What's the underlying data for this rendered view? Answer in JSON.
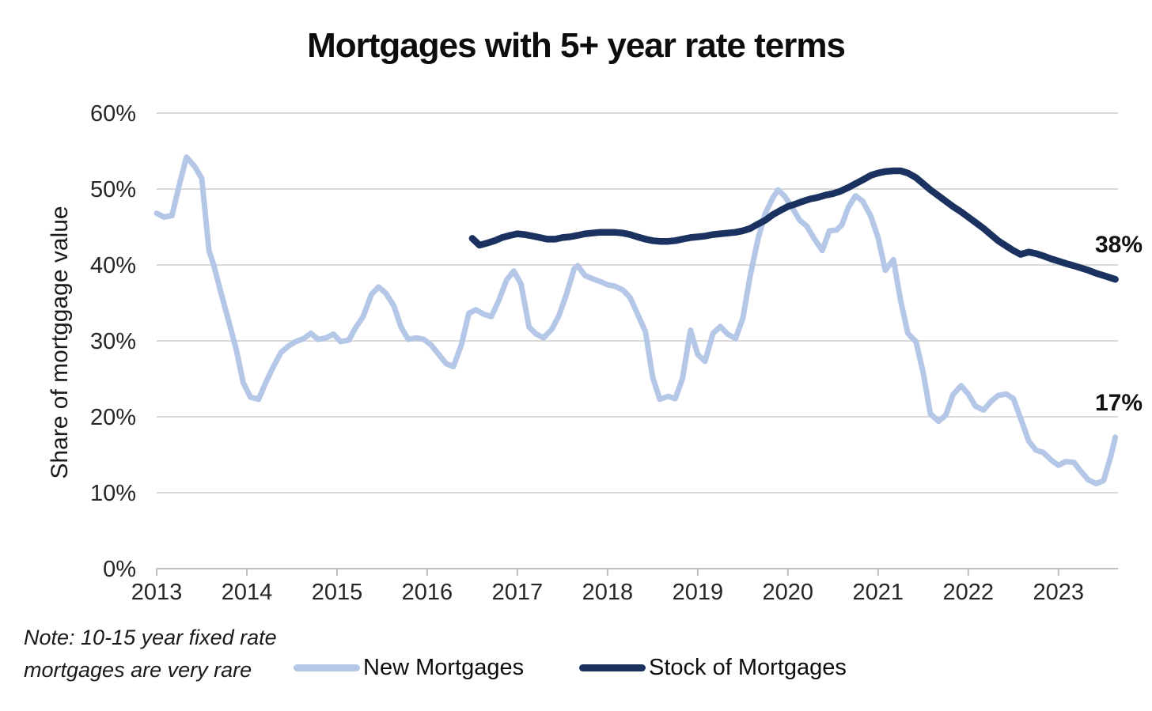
{
  "title": "Mortgages with 5+ year rate terms",
  "y_axis": {
    "title": "Share of mortggage value",
    "tick_labels": [
      "60%",
      "50%",
      "40%",
      "30%",
      "20%",
      "10%",
      "0%"
    ],
    "min": 0,
    "max": 60,
    "step": 10
  },
  "x_axis": {
    "tick_labels": [
      "2013",
      "2014",
      "2015",
      "2016",
      "2017",
      "2018",
      "2019",
      "2020",
      "2021",
      "2022",
      "2023"
    ]
  },
  "note": {
    "line1": "Note: 10-15 year fixed rate",
    "line2": "mortgages are very rare"
  },
  "legend": {
    "items": [
      {
        "label": "New Mortgages",
        "color": "#b4c7e7"
      },
      {
        "label": "Stock of Mortgages",
        "color": "#1b3261"
      }
    ]
  },
  "colors": {
    "new_mortgages": "#b4c7e7",
    "stock_of_mortgages": "#1b3261",
    "gridline": "#d9d9d9",
    "axis": "#bfbfbf",
    "text": "#262626"
  },
  "annotations": [
    {
      "text": "38%",
      "series": "Stock of Mortgages"
    },
    {
      "text": "17%",
      "series": "New Mortgages"
    }
  ],
  "chart_data": {
    "type": "line",
    "title": "Mortgages with 5+ year rate terms",
    "xlabel": "",
    "ylabel": "Share of mortggage value",
    "ylim": [
      0,
      60
    ],
    "x_range": [
      2013,
      2023.66
    ],
    "grid": "horizontal",
    "legend_position": "bottom",
    "series": [
      {
        "name": "New Mortgages",
        "color": "#b4c7e7",
        "width": 7,
        "end_label": "17%",
        "points": [
          [
            2013.0,
            46.8
          ],
          [
            2013.08,
            46.3
          ],
          [
            2013.17,
            46.5
          ],
          [
            2013.25,
            50.5
          ],
          [
            2013.33,
            54.2
          ],
          [
            2013.42,
            53.0
          ],
          [
            2013.5,
            51.4
          ],
          [
            2013.58,
            41.9
          ],
          [
            2013.63,
            40.1
          ],
          [
            2013.71,
            36.5
          ],
          [
            2013.79,
            33.0
          ],
          [
            2013.88,
            29.0
          ],
          [
            2013.96,
            24.5
          ],
          [
            2014.04,
            22.6
          ],
          [
            2014.13,
            22.3
          ],
          [
            2014.21,
            24.5
          ],
          [
            2014.29,
            26.5
          ],
          [
            2014.38,
            28.5
          ],
          [
            2014.46,
            29.3
          ],
          [
            2014.54,
            29.9
          ],
          [
            2014.63,
            30.3
          ],
          [
            2014.71,
            31.0
          ],
          [
            2014.79,
            30.2
          ],
          [
            2014.88,
            30.4
          ],
          [
            2014.96,
            30.9
          ],
          [
            2015.04,
            29.9
          ],
          [
            2015.13,
            30.1
          ],
          [
            2015.21,
            31.8
          ],
          [
            2015.29,
            33.2
          ],
          [
            2015.38,
            36.1
          ],
          [
            2015.46,
            37.1
          ],
          [
            2015.54,
            36.3
          ],
          [
            2015.63,
            34.6
          ],
          [
            2015.71,
            31.8
          ],
          [
            2015.79,
            30.2
          ],
          [
            2015.88,
            30.4
          ],
          [
            2015.96,
            30.2
          ],
          [
            2016.04,
            29.5
          ],
          [
            2016.13,
            28.2
          ],
          [
            2016.21,
            27.0
          ],
          [
            2016.29,
            26.6
          ],
          [
            2016.38,
            29.5
          ],
          [
            2016.46,
            33.6
          ],
          [
            2016.54,
            34.1
          ],
          [
            2016.63,
            33.5
          ],
          [
            2016.71,
            33.2
          ],
          [
            2016.79,
            35.2
          ],
          [
            2016.88,
            38.0
          ],
          [
            2016.96,
            39.2
          ],
          [
            2017.04,
            37.5
          ],
          [
            2017.13,
            31.8
          ],
          [
            2017.21,
            30.9
          ],
          [
            2017.29,
            30.4
          ],
          [
            2017.38,
            31.5
          ],
          [
            2017.46,
            33.3
          ],
          [
            2017.54,
            36.0
          ],
          [
            2017.63,
            39.5
          ],
          [
            2017.67,
            39.9
          ],
          [
            2017.75,
            38.6
          ],
          [
            2017.83,
            38.2
          ],
          [
            2017.92,
            37.8
          ],
          [
            2018.0,
            37.4
          ],
          [
            2018.08,
            37.2
          ],
          [
            2018.17,
            36.7
          ],
          [
            2018.25,
            35.7
          ],
          [
            2018.33,
            33.6
          ],
          [
            2018.42,
            31.2
          ],
          [
            2018.5,
            25.2
          ],
          [
            2018.58,
            22.3
          ],
          [
            2018.67,
            22.7
          ],
          [
            2018.75,
            22.4
          ],
          [
            2018.83,
            25.0
          ],
          [
            2018.92,
            31.4
          ],
          [
            2019.0,
            28.2
          ],
          [
            2019.08,
            27.3
          ],
          [
            2019.17,
            31.0
          ],
          [
            2019.25,
            31.9
          ],
          [
            2019.33,
            30.9
          ],
          [
            2019.42,
            30.3
          ],
          [
            2019.5,
            33.0
          ],
          [
            2019.58,
            38.5
          ],
          [
            2019.67,
            43.5
          ],
          [
            2019.75,
            46.8
          ],
          [
            2019.83,
            48.8
          ],
          [
            2019.89,
            49.9
          ],
          [
            2019.96,
            49.1
          ],
          [
            2020.04,
            47.7
          ],
          [
            2020.13,
            45.9
          ],
          [
            2020.21,
            45.1
          ],
          [
            2020.29,
            43.5
          ],
          [
            2020.38,
            41.9
          ],
          [
            2020.46,
            44.5
          ],
          [
            2020.54,
            44.6
          ],
          [
            2020.6,
            45.3
          ],
          [
            2020.67,
            47.6
          ],
          [
            2020.75,
            49.1
          ],
          [
            2020.83,
            48.4
          ],
          [
            2020.92,
            46.4
          ],
          [
            2021.0,
            43.6
          ],
          [
            2021.08,
            39.3
          ],
          [
            2021.17,
            40.7
          ],
          [
            2021.25,
            35.3
          ],
          [
            2021.33,
            31.0
          ],
          [
            2021.42,
            29.9
          ],
          [
            2021.5,
            25.8
          ],
          [
            2021.58,
            20.4
          ],
          [
            2021.67,
            19.4
          ],
          [
            2021.75,
            20.2
          ],
          [
            2021.83,
            22.9
          ],
          [
            2021.92,
            24.1
          ],
          [
            2022.0,
            23.0
          ],
          [
            2022.08,
            21.4
          ],
          [
            2022.17,
            20.9
          ],
          [
            2022.25,
            22.0
          ],
          [
            2022.33,
            22.8
          ],
          [
            2022.42,
            23.0
          ],
          [
            2022.5,
            22.4
          ],
          [
            2022.58,
            19.8
          ],
          [
            2022.67,
            16.8
          ],
          [
            2022.75,
            15.6
          ],
          [
            2022.83,
            15.3
          ],
          [
            2022.92,
            14.3
          ],
          [
            2023.0,
            13.6
          ],
          [
            2023.08,
            14.1
          ],
          [
            2023.17,
            14.0
          ],
          [
            2023.25,
            12.8
          ],
          [
            2023.33,
            11.7
          ],
          [
            2023.42,
            11.2
          ],
          [
            2023.5,
            11.6
          ],
          [
            2023.58,
            14.8
          ],
          [
            2023.63,
            17.3
          ]
        ]
      },
      {
        "name": "Stock of Mortgages",
        "color": "#1b3261",
        "width": 8.5,
        "end_label": "38%",
        "points": [
          [
            2016.5,
            43.5
          ],
          [
            2016.58,
            42.6
          ],
          [
            2016.67,
            42.9
          ],
          [
            2016.75,
            43.2
          ],
          [
            2016.83,
            43.6
          ],
          [
            2016.92,
            43.9
          ],
          [
            2017.0,
            44.1
          ],
          [
            2017.08,
            44.0
          ],
          [
            2017.17,
            43.8
          ],
          [
            2017.25,
            43.6
          ],
          [
            2017.33,
            43.4
          ],
          [
            2017.42,
            43.4
          ],
          [
            2017.5,
            43.6
          ],
          [
            2017.58,
            43.7
          ],
          [
            2017.67,
            43.9
          ],
          [
            2017.75,
            44.1
          ],
          [
            2017.83,
            44.2
          ],
          [
            2017.92,
            44.3
          ],
          [
            2018.0,
            44.3
          ],
          [
            2018.08,
            44.3
          ],
          [
            2018.17,
            44.2
          ],
          [
            2018.25,
            44.0
          ],
          [
            2018.33,
            43.7
          ],
          [
            2018.42,
            43.4
          ],
          [
            2018.5,
            43.2
          ],
          [
            2018.58,
            43.1
          ],
          [
            2018.67,
            43.1
          ],
          [
            2018.75,
            43.2
          ],
          [
            2018.83,
            43.4
          ],
          [
            2018.92,
            43.6
          ],
          [
            2019.0,
            43.7
          ],
          [
            2019.08,
            43.8
          ],
          [
            2019.17,
            44.0
          ],
          [
            2019.25,
            44.1
          ],
          [
            2019.33,
            44.2
          ],
          [
            2019.42,
            44.3
          ],
          [
            2019.5,
            44.5
          ],
          [
            2019.58,
            44.8
          ],
          [
            2019.67,
            45.4
          ],
          [
            2019.75,
            45.9
          ],
          [
            2019.83,
            46.6
          ],
          [
            2019.92,
            47.2
          ],
          [
            2020.0,
            47.7
          ],
          [
            2020.08,
            48.0
          ],
          [
            2020.17,
            48.4
          ],
          [
            2020.25,
            48.7
          ],
          [
            2020.33,
            48.9
          ],
          [
            2020.42,
            49.2
          ],
          [
            2020.5,
            49.4
          ],
          [
            2020.58,
            49.7
          ],
          [
            2020.67,
            50.2
          ],
          [
            2020.75,
            50.7
          ],
          [
            2020.83,
            51.2
          ],
          [
            2020.92,
            51.8
          ],
          [
            2021.0,
            52.1
          ],
          [
            2021.08,
            52.3
          ],
          [
            2021.17,
            52.4
          ],
          [
            2021.25,
            52.4
          ],
          [
            2021.33,
            52.1
          ],
          [
            2021.42,
            51.5
          ],
          [
            2021.5,
            50.7
          ],
          [
            2021.58,
            49.9
          ],
          [
            2021.67,
            49.1
          ],
          [
            2021.75,
            48.4
          ],
          [
            2021.83,
            47.7
          ],
          [
            2021.92,
            47.0
          ],
          [
            2022.0,
            46.3
          ],
          [
            2022.08,
            45.6
          ],
          [
            2022.17,
            44.8
          ],
          [
            2022.25,
            44.0
          ],
          [
            2022.33,
            43.2
          ],
          [
            2022.42,
            42.5
          ],
          [
            2022.5,
            41.9
          ],
          [
            2022.58,
            41.4
          ],
          [
            2022.67,
            41.7
          ],
          [
            2022.75,
            41.5
          ],
          [
            2022.83,
            41.2
          ],
          [
            2022.92,
            40.8
          ],
          [
            2023.0,
            40.5
          ],
          [
            2023.08,
            40.2
          ],
          [
            2023.17,
            39.9
          ],
          [
            2023.25,
            39.6
          ],
          [
            2023.33,
            39.3
          ],
          [
            2023.42,
            38.9
          ],
          [
            2023.5,
            38.6
          ],
          [
            2023.58,
            38.3
          ],
          [
            2023.63,
            38.1
          ]
        ]
      }
    ]
  }
}
